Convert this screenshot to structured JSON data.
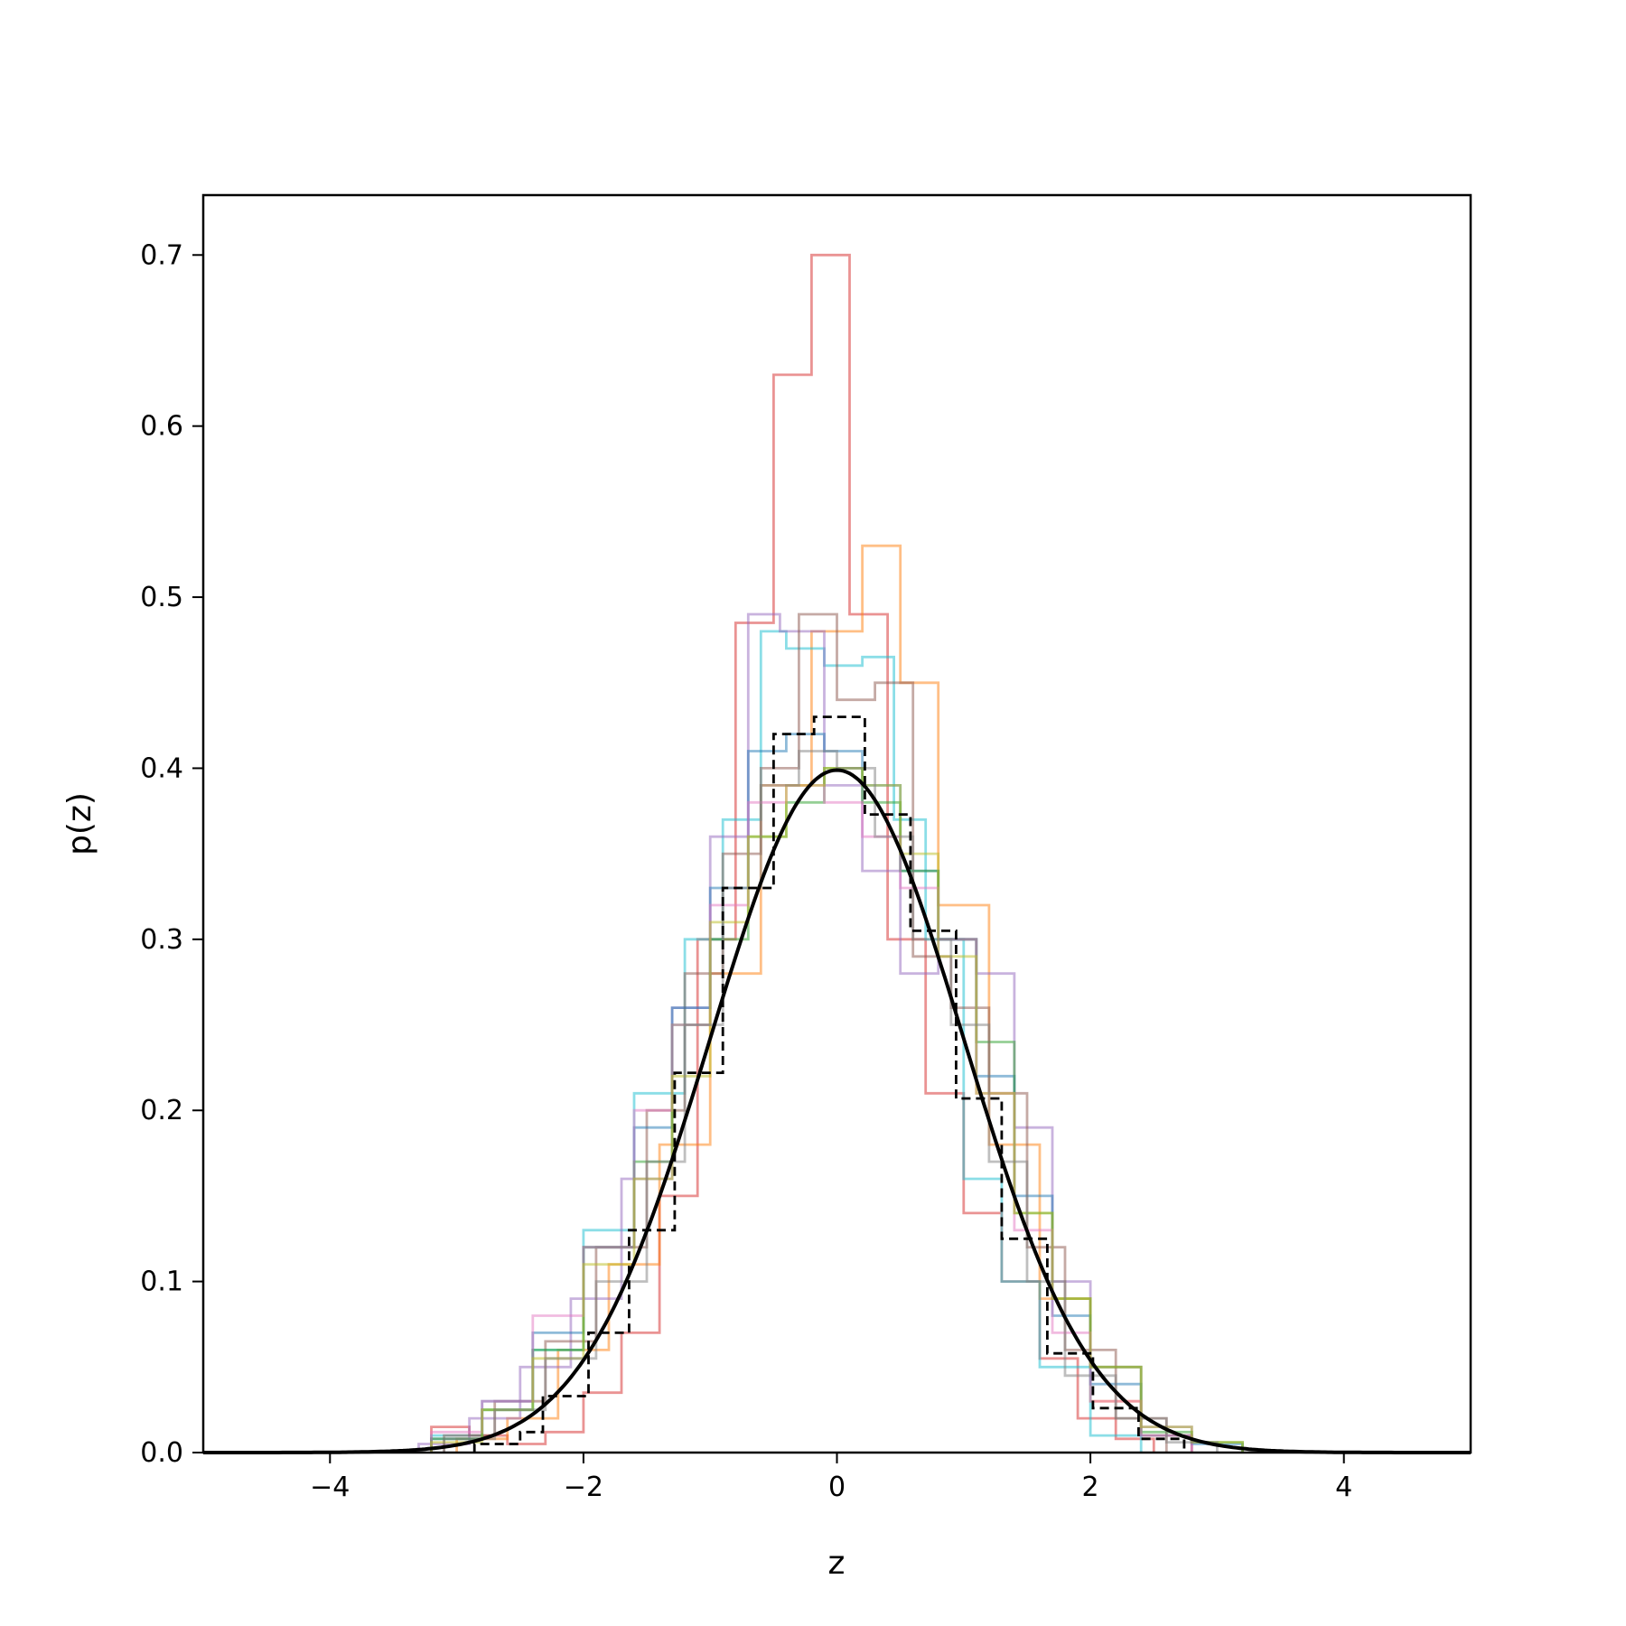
{
  "chart_data": {
    "type": "line",
    "title": "",
    "xlabel": "z",
    "ylabel": "p(z)",
    "xlim": [
      -5,
      5
    ],
    "ylim": [
      0,
      0.735
    ],
    "grid": false,
    "legend": "none",
    "x_ticks": [
      {
        "value": -4,
        "label": "−4"
      },
      {
        "value": -2,
        "label": "−2"
      },
      {
        "value": 0,
        "label": "0"
      },
      {
        "value": 2,
        "label": "2"
      },
      {
        "value": 4,
        "label": "4"
      }
    ],
    "y_ticks": [
      {
        "value": 0.0,
        "label": "0.0"
      },
      {
        "value": 0.1,
        "label": "0.1"
      },
      {
        "value": 0.2,
        "label": "0.2"
      },
      {
        "value": 0.3,
        "label": "0.3"
      },
      {
        "value": 0.4,
        "label": "0.4"
      },
      {
        "value": 0.5,
        "label": "0.5"
      },
      {
        "value": 0.6,
        "label": "0.6"
      },
      {
        "value": 0.7,
        "label": "0.7"
      }
    ],
    "curve": {
      "kind": "standard normal pdf",
      "mean": 0,
      "std": 1,
      "color": "#000000"
    },
    "reference_histogram": {
      "color": "#000000",
      "style": "dashed",
      "edges": [
        -2.86,
        -2.5,
        -2.32,
        -1.96,
        -1.64,
        -1.28,
        -0.9,
        -0.5,
        -0.18,
        0.22,
        0.58,
        0.94,
        1.3,
        1.66,
        2.02,
        2.38,
        2.74
      ],
      "values": [
        0.005,
        0.012,
        0.033,
        0.07,
        0.13,
        0.222,
        0.33,
        0.42,
        0.43,
        0.373,
        0.305,
        0.207,
        0.125,
        0.058,
        0.026,
        0.008
      ]
    },
    "histograms": [
      {
        "color": "#d62728",
        "edges": [
          -3.2,
          -2.9,
          -2.6,
          -2.3,
          -2.0,
          -1.7,
          -1.4,
          -1.1,
          -0.8,
          -0.5,
          -0.2,
          0.1,
          0.4,
          0.7,
          1.0,
          1.3,
          1.6,
          1.9,
          2.2,
          2.5
        ],
        "values": [
          0.015,
          0.01,
          0.005,
          0.012,
          0.035,
          0.07,
          0.15,
          0.3,
          0.485,
          0.63,
          0.7,
          0.49,
          0.3,
          0.21,
          0.14,
          0.1,
          0.055,
          0.02,
          0.008
        ]
      },
      {
        "color": "#ff7f0e",
        "edges": [
          -3.0,
          -2.6,
          -2.2,
          -1.8,
          -1.4,
          -1.0,
          -0.6,
          -0.2,
          0.2,
          0.5,
          0.8,
          1.2,
          1.6,
          2.0,
          2.4,
          2.8
        ],
        "values": [
          0.008,
          0.02,
          0.06,
          0.11,
          0.18,
          0.28,
          0.39,
          0.48,
          0.53,
          0.45,
          0.32,
          0.18,
          0.09,
          0.03,
          0.01
        ]
      },
      {
        "color": "#17becf",
        "edges": [
          -3.2,
          -2.8,
          -2.4,
          -2.0,
          -1.6,
          -1.2,
          -0.9,
          -0.6,
          -0.4,
          -0.1,
          0.2,
          0.45,
          0.7,
          1.0,
          1.3,
          1.6,
          2.0,
          2.4
        ],
        "values": [
          0.01,
          0.025,
          0.06,
          0.13,
          0.21,
          0.3,
          0.37,
          0.48,
          0.47,
          0.46,
          0.465,
          0.37,
          0.3,
          0.16,
          0.1,
          0.05,
          0.01
        ]
      },
      {
        "color": "#9467bd",
        "edges": [
          -3.3,
          -2.9,
          -2.5,
          -2.1,
          -1.7,
          -1.3,
          -1.0,
          -0.7,
          -0.45,
          -0.1,
          0.2,
          0.5,
          0.8,
          1.1,
          1.4,
          1.7,
          2.0,
          2.4,
          2.8
        ],
        "values": [
          0.005,
          0.02,
          0.05,
          0.09,
          0.16,
          0.26,
          0.36,
          0.49,
          0.48,
          0.39,
          0.34,
          0.28,
          0.3,
          0.28,
          0.19,
          0.1,
          0.05,
          0.015
        ]
      },
      {
        "color": "#8c564b",
        "edges": [
          -3.1,
          -2.7,
          -2.3,
          -1.9,
          -1.5,
          -1.2,
          -0.9,
          -0.6,
          -0.3,
          0.0,
          0.3,
          0.6,
          0.9,
          1.2,
          1.5,
          1.8,
          2.2,
          2.6
        ],
        "values": [
          0.01,
          0.03,
          0.065,
          0.12,
          0.2,
          0.28,
          0.35,
          0.4,
          0.49,
          0.44,
          0.45,
          0.29,
          0.26,
          0.21,
          0.12,
          0.06,
          0.02
        ]
      },
      {
        "color": "#1f77b4",
        "edges": [
          -3.2,
          -2.8,
          -2.4,
          -2.0,
          -1.6,
          -1.3,
          -1.0,
          -0.7,
          -0.4,
          -0.1,
          0.2,
          0.5,
          0.8,
          1.1,
          1.4,
          1.7,
          2.0,
          2.4,
          2.8,
          3.2
        ],
        "values": [
          0.008,
          0.03,
          0.07,
          0.12,
          0.19,
          0.26,
          0.33,
          0.41,
          0.42,
          0.41,
          0.39,
          0.34,
          0.3,
          0.22,
          0.15,
          0.08,
          0.04,
          0.01,
          0.005
        ]
      },
      {
        "color": "#2ca02c",
        "edges": [
          -3.2,
          -2.8,
          -2.4,
          -2.0,
          -1.6,
          -1.3,
          -1.0,
          -0.7,
          -0.4,
          -0.1,
          0.2,
          0.5,
          0.8,
          1.1,
          1.4,
          1.7,
          2.0,
          2.4,
          2.8,
          3.2
        ],
        "values": [
          0.008,
          0.025,
          0.06,
          0.12,
          0.17,
          0.25,
          0.3,
          0.36,
          0.38,
          0.4,
          0.38,
          0.34,
          0.3,
          0.24,
          0.14,
          0.09,
          0.05,
          0.012,
          0.006
        ]
      },
      {
        "color": "#e377c2",
        "edges": [
          -3.2,
          -2.8,
          -2.4,
          -2.0,
          -1.6,
          -1.3,
          -1.0,
          -0.7,
          -0.4,
          -0.1,
          0.2,
          0.5,
          0.8,
          1.1,
          1.4,
          1.7,
          2.0,
          2.4,
          2.8
        ],
        "values": [
          0.012,
          0.03,
          0.08,
          0.12,
          0.2,
          0.25,
          0.32,
          0.38,
          0.39,
          0.38,
          0.36,
          0.33,
          0.3,
          0.21,
          0.13,
          0.07,
          0.03,
          0.01
        ]
      },
      {
        "color": "#bcbd22",
        "edges": [
          -3.2,
          -2.8,
          -2.4,
          -2.0,
          -1.6,
          -1.3,
          -1.0,
          -0.7,
          -0.4,
          -0.1,
          0.2,
          0.5,
          0.8,
          1.1,
          1.4,
          1.7,
          2.0,
          2.4,
          2.8,
          3.2
        ],
        "values": [
          0.006,
          0.025,
          0.055,
          0.11,
          0.16,
          0.22,
          0.31,
          0.36,
          0.39,
          0.4,
          0.39,
          0.35,
          0.29,
          0.21,
          0.14,
          0.09,
          0.05,
          0.015,
          0.006
        ]
      },
      {
        "color": "#7f7f7f",
        "edges": [
          -3.1,
          -2.7,
          -2.3,
          -1.9,
          -1.5,
          -1.2,
          -0.9,
          -0.6,
          -0.3,
          0.0,
          0.3,
          0.6,
          0.9,
          1.2,
          1.5,
          1.8,
          2.2,
          2.6,
          3.0
        ],
        "values": [
          0.008,
          0.025,
          0.055,
          0.1,
          0.17,
          0.25,
          0.33,
          0.39,
          0.41,
          0.4,
          0.36,
          0.3,
          0.25,
          0.17,
          0.1,
          0.045,
          0.02,
          0.006
        ]
      }
    ]
  }
}
